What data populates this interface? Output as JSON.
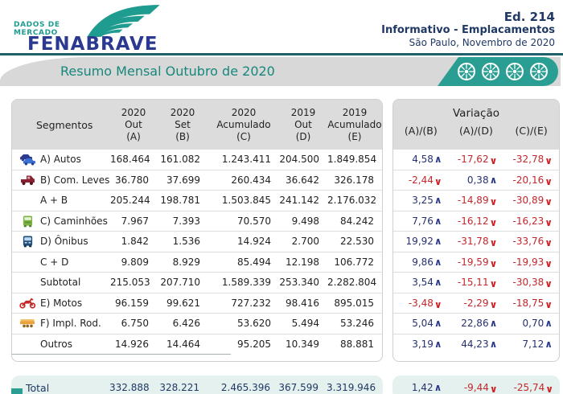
{
  "header": {
    "logo_tagline_line1": "DADOS DE",
    "logo_tagline_line2": "MERCADO",
    "logo_name": "FENABRAVE",
    "edition": "Ed. 214",
    "subtitle": "Informativo - Emplacamentos",
    "place_date": "São Paulo, Novembro de 2020"
  },
  "band": {
    "title": "Resumo Mensal Outubro de 2020",
    "wheel_icon_count": 4
  },
  "table": {
    "segments_header": "Segmentos",
    "columns": [
      {
        "line1": "2020",
        "line2": "Out",
        "line3": "(A)"
      },
      {
        "line1": "2020",
        "line2": "Set",
        "line3": "(B)"
      },
      {
        "line1": "2020",
        "line2": "Acumulado",
        "line3": "(C)"
      },
      {
        "line1": "2019",
        "line2": "Out",
        "line3": "(D)"
      },
      {
        "line1": "2019",
        "line2": "Acumulado",
        "line3": "(E)"
      }
    ],
    "variation": {
      "title": "Variação",
      "columns": [
        "(A)/(B)",
        "(A)/(D)",
        "(C)/(E)"
      ]
    },
    "rows": [
      {
        "icon": "autos-icon",
        "label": "A) Autos",
        "values": [
          "168.464",
          "161.082",
          "1.243.411",
          "204.500",
          "1.849.854"
        ],
        "variations": [
          {
            "value": "4,58",
            "direction": "up"
          },
          {
            "value": "-17,62",
            "direction": "down"
          },
          {
            "value": "-32,78",
            "direction": "down"
          }
        ]
      },
      {
        "icon": "com-leves-icon",
        "label": "B) Com. Leves",
        "values": [
          "36.780",
          "37.699",
          "260.434",
          "36.642",
          "326.178"
        ],
        "variations": [
          {
            "value": "-2,44",
            "direction": "down"
          },
          {
            "value": "0,38",
            "direction": "up"
          },
          {
            "value": "-20,16",
            "direction": "down"
          }
        ]
      },
      {
        "icon": null,
        "label": "A + B",
        "values": [
          "205.244",
          "198.781",
          "1.503.845",
          "241.142",
          "2.176.032"
        ],
        "variations": [
          {
            "value": "3,25",
            "direction": "up"
          },
          {
            "value": "-14,89",
            "direction": "down"
          },
          {
            "value": "-30,89",
            "direction": "down"
          }
        ]
      },
      {
        "icon": "caminhoes-icon",
        "label": "C) Caminhões",
        "values": [
          "7.967",
          "7.393",
          "70.570",
          "9.498",
          "84.242"
        ],
        "variations": [
          {
            "value": "7,76",
            "direction": "up"
          },
          {
            "value": "-16,12",
            "direction": "down"
          },
          {
            "value": "-16,23",
            "direction": "down"
          }
        ]
      },
      {
        "icon": "onibus-icon",
        "label": "D) Ônibus",
        "values": [
          "1.842",
          "1.536",
          "14.924",
          "2.700",
          "22.530"
        ],
        "variations": [
          {
            "value": "19,92",
            "direction": "up"
          },
          {
            "value": "-31,78",
            "direction": "down"
          },
          {
            "value": "-33,76",
            "direction": "down"
          }
        ]
      },
      {
        "icon": null,
        "label": "C + D",
        "values": [
          "9.809",
          "8.929",
          "85.494",
          "12.198",
          "106.772"
        ],
        "variations": [
          {
            "value": "9,86",
            "direction": "up"
          },
          {
            "value": "-19,59",
            "direction": "down"
          },
          {
            "value": "-19,93",
            "direction": "down"
          }
        ]
      },
      {
        "icon": null,
        "label": "Subtotal",
        "values": [
          "215.053",
          "207.710",
          "1.589.339",
          "253.340",
          "2.282.804"
        ],
        "variations": [
          {
            "value": "3,54",
            "direction": "up"
          },
          {
            "value": "-15,11",
            "direction": "down"
          },
          {
            "value": "-30,38",
            "direction": "down"
          }
        ]
      },
      {
        "icon": "motos-icon",
        "label": "E) Motos",
        "values": [
          "96.159",
          "99.621",
          "727.232",
          "98.416",
          "895.015"
        ],
        "variations": [
          {
            "value": "-3,48",
            "direction": "down"
          },
          {
            "value": "-2,29",
            "direction": "down"
          },
          {
            "value": "-18,75",
            "direction": "down"
          }
        ]
      },
      {
        "icon": "impl-rod-icon",
        "label": "F) Impl. Rod.",
        "values": [
          "6.750",
          "6.426",
          "53.620",
          "5.494",
          "53.246"
        ],
        "variations": [
          {
            "value": "5,04",
            "direction": "up"
          },
          {
            "value": "22,86",
            "direction": "up"
          },
          {
            "value": "0,70",
            "direction": "up"
          }
        ]
      },
      {
        "icon": null,
        "label": "Outros",
        "values": [
          "14.926",
          "14.464",
          "95.205",
          "10.349",
          "88.881"
        ],
        "variations": [
          {
            "value": "3,19",
            "direction": "up"
          },
          {
            "value": "44,23",
            "direction": "up"
          },
          {
            "value": "7,12",
            "direction": "up"
          }
        ]
      }
    ],
    "total": {
      "label": "Total",
      "values": [
        "332.888",
        "328.221",
        "2.465.396",
        "367.599",
        "3.319.946"
      ],
      "variations": [
        {
          "value": "1,42",
          "direction": "up"
        },
        {
          "value": "-9,44",
          "direction": "down"
        },
        {
          "value": "-25,74",
          "direction": "down"
        }
      ]
    }
  },
  "colors": {
    "teal": "#2B9E93",
    "navy_brand": "#2B3990",
    "header_text": "#1F3864",
    "band_title": "#17877C",
    "positive": "#2B3A8C",
    "negative": "#C3262B",
    "total_bg": "#E5F1EE"
  }
}
